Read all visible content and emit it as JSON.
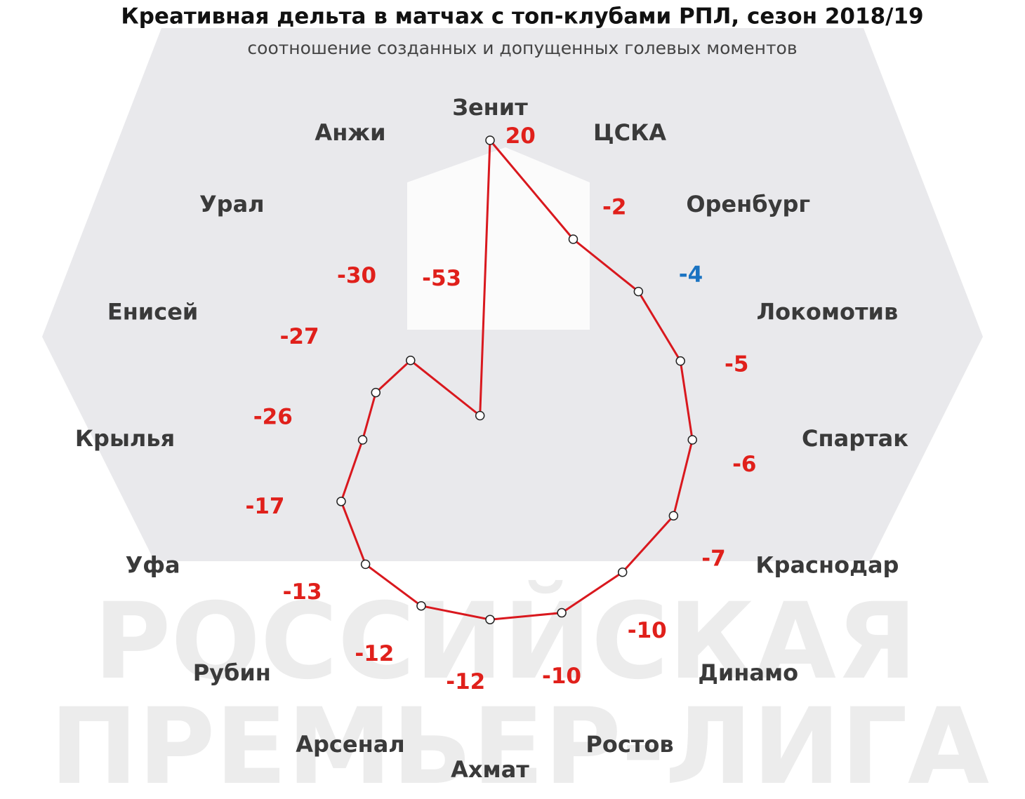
{
  "chart_data": {
    "type": "radar",
    "title": "Креативная дельта в матчах с топ-клубами РПЛ, сезон 2018/19",
    "subtitle": "соотношение созданных и допущенных голевых моментов",
    "watermark": [
      "РОССИЙСКАЯ",
      "ПРЕМЬЕР-ЛИГА"
    ],
    "categories": [
      "Зенит",
      "ЦСКА",
      "Оренбург",
      "Локомотив",
      "Спартак",
      "Краснодар",
      "Динамо",
      "Ростов",
      "Ахмат",
      "Арсенал",
      "Рубин",
      "Уфа",
      "Крылья",
      "Енисей",
      "Урал",
      "Анжи"
    ],
    "values": [
      20,
      -2,
      -4,
      -5,
      -6,
      -7,
      -10,
      -10,
      -12,
      -12,
      -13,
      -17,
      -26,
      -27,
      -30,
      -53
    ],
    "label_colors": [
      "#e0201b",
      "#e0201b",
      "#1a73c2",
      "#e0201b",
      "#e0201b",
      "#e0201b",
      "#e0201b",
      "#e0201b",
      "#e0201b",
      "#e0201b",
      "#e0201b",
      "#e0201b",
      "#e0201b",
      "#e0201b",
      "#e0201b",
      "#e0201b"
    ],
    "color": "#d9181e",
    "rlim": [
      -60,
      20
    ]
  }
}
